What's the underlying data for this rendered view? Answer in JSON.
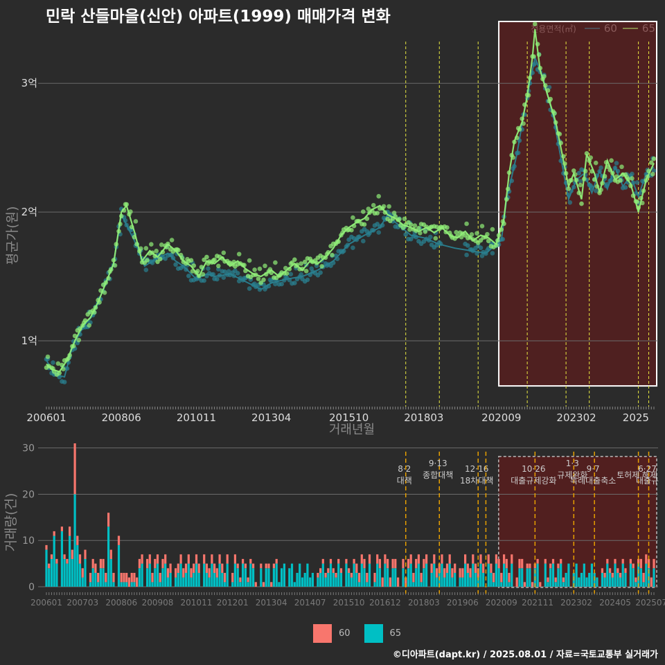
{
  "title": "민락 산들마을(신안) 아파트(1999) 매매가격 변화",
  "legend_top": {
    "label": "전용면적(㎡)",
    "items": [
      {
        "name": "60",
        "color": "#2a8090"
      },
      {
        "name": "65",
        "color": "#90ee78"
      }
    ]
  },
  "legend_bottom": {
    "items": [
      {
        "name": "60",
        "color": "#f8766d"
      },
      {
        "name": "65",
        "color": "#00bfc4"
      }
    ]
  },
  "footer": "©디아파트(dapt.kr) / 2025.08.01 / 자료=국토교통부 실거래가",
  "chart_data": [
    {
      "type": "line",
      "ylabel": "평균가(원)",
      "xlabel": "거래년월",
      "x_start": "200601",
      "x_end": "202508",
      "ylim": [
        0.5,
        3.55
      ],
      "y_ticks": [
        {
          "value": 1,
          "label": "1억"
        },
        {
          "value": 2,
          "label": "2억"
        },
        {
          "value": 3,
          "label": "3억"
        }
      ],
      "x_ticks": [
        "200601",
        "200806",
        "201011",
        "201304",
        "201510",
        "201803",
        "202009",
        "202302",
        "2025"
      ],
      "vlines": [
        "201708",
        "201809",
        "201912",
        "202107",
        "202210",
        "202307",
        "202502",
        "202506"
      ],
      "highlight_box": {
        "from": "202008",
        "to": "202508",
        "ymin": 0.65,
        "ymax": 3.48
      },
      "series": [
        {
          "name": "60",
          "points": [
            [
              "200601",
              0.85
            ],
            [
              "200604",
              0.74
            ],
            [
              "200608",
              0.72
            ],
            [
              "200611",
              0.95
            ],
            [
              "200703",
              1.1
            ],
            [
              "200707",
              1.2
            ],
            [
              "200711",
              1.4
            ],
            [
              "200803",
              1.6
            ],
            [
              "200806",
              1.98
            ],
            [
              "200811",
              1.78
            ],
            [
              "200903",
              1.58
            ],
            [
              "200906",
              1.62
            ],
            [
              "200912",
              1.68
            ],
            [
              "201003",
              1.62
            ],
            [
              "201006",
              1.58
            ],
            [
              "201011",
              1.48
            ],
            [
              "201103",
              1.52
            ],
            [
              "201106",
              1.5
            ],
            [
              "201112",
              1.52
            ],
            [
              "201206",
              1.46
            ],
            [
              "201212",
              1.4
            ],
            [
              "201304",
              1.45
            ],
            [
              "201310",
              1.48
            ],
            [
              "201404",
              1.5
            ],
            [
              "201410",
              1.55
            ],
            [
              "201504",
              1.62
            ],
            [
              "201510",
              1.75
            ],
            [
              "201604",
              1.82
            ],
            [
              "201610",
              1.88
            ],
            [
              "201701",
              1.98
            ],
            [
              "201704",
              1.92
            ],
            [
              "201710",
              1.82
            ],
            [
              "201803",
              1.8
            ],
            [
              "201809",
              1.75
            ],
            [
              "201903",
              1.72
            ],
            [
              "201909",
              1.7
            ],
            [
              "202003",
              1.68
            ],
            [
              "202009",
              1.78
            ],
            [
              "202011",
              2.1
            ],
            [
              "202103",
              2.45
            ],
            [
              "202106",
              2.8
            ],
            [
              "202108",
              3.0
            ],
            [
              "202110",
              3.2
            ],
            [
              "202201",
              3.05
            ],
            [
              "202205",
              2.75
            ],
            [
              "202208",
              2.42
            ],
            [
              "202211",
              2.1
            ],
            [
              "202302",
              2.25
            ],
            [
              "202305",
              2.3
            ],
            [
              "202308",
              2.15
            ],
            [
              "202311",
              2.32
            ],
            [
              "202402",
              2.18
            ],
            [
              "202405",
              2.35
            ],
            [
              "202408",
              2.2
            ],
            [
              "202411",
              2.28
            ],
            [
              "202502",
              2.12
            ],
            [
              "202505",
              2.3
            ],
            [
              "202508",
              2.35
            ]
          ]
        },
        {
          "name": "65",
          "points": [
            [
              "200601",
              0.82
            ],
            [
              "200603",
              0.78
            ],
            [
              "200606",
              0.76
            ],
            [
              "200609",
              0.85
            ],
            [
              "200612",
              1.0
            ],
            [
              "200703",
              1.12
            ],
            [
              "200706",
              1.18
            ],
            [
              "200709",
              1.3
            ],
            [
              "200712",
              1.45
            ],
            [
              "200803",
              1.6
            ],
            [
              "200806",
              2.0
            ],
            [
              "200808",
              2.05
            ],
            [
              "200811",
              1.85
            ],
            [
              "200902",
              1.62
            ],
            [
              "200905",
              1.7
            ],
            [
              "200908",
              1.65
            ],
            [
              "200912",
              1.75
            ],
            [
              "201003",
              1.7
            ],
            [
              "201006",
              1.62
            ],
            [
              "201009",
              1.58
            ],
            [
              "201012",
              1.5
            ],
            [
              "201103",
              1.62
            ],
            [
              "201106",
              1.6
            ],
            [
              "201109",
              1.65
            ],
            [
              "201112",
              1.58
            ],
            [
              "201203",
              1.62
            ],
            [
              "201206",
              1.56
            ],
            [
              "201209",
              1.52
            ],
            [
              "201212",
              1.5
            ],
            [
              "201304",
              1.55
            ],
            [
              "201307",
              1.5
            ],
            [
              "201310",
              1.55
            ],
            [
              "201401",
              1.6
            ],
            [
              "201404",
              1.55
            ],
            [
              "201407",
              1.62
            ],
            [
              "201410",
              1.6
            ],
            [
              "201501",
              1.65
            ],
            [
              "201504",
              1.72
            ],
            [
              "201507",
              1.82
            ],
            [
              "201510",
              1.88
            ],
            [
              "201601",
              1.92
            ],
            [
              "201604",
              1.95
            ],
            [
              "201607",
              2.02
            ],
            [
              "201610",
              2.05
            ],
            [
              "201701",
              1.98
            ],
            [
              "201704",
              1.95
            ],
            [
              "201707",
              1.9
            ],
            [
              "201710",
              1.88
            ],
            [
              "201801",
              1.85
            ],
            [
              "201804",
              1.88
            ],
            [
              "201807",
              1.84
            ],
            [
              "201810",
              1.88
            ],
            [
              "201901",
              1.82
            ],
            [
              "201904",
              1.8
            ],
            [
              "201907",
              1.85
            ],
            [
              "201910",
              1.78
            ],
            [
              "202001",
              1.82
            ],
            [
              "202004",
              1.8
            ],
            [
              "202007",
              1.75
            ],
            [
              "202010",
              1.95
            ],
            [
              "202012",
              2.3
            ],
            [
              "202102",
              2.55
            ],
            [
              "202105",
              2.7
            ],
            [
              "202107",
              2.9
            ],
            [
              "202109",
              3.2
            ],
            [
              "202110",
              3.42
            ],
            [
              "202112",
              3.1
            ],
            [
              "202203",
              2.9
            ],
            [
              "202206",
              2.7
            ],
            [
              "202209",
              2.4
            ],
            [
              "202211",
              2.2
            ],
            [
              "202301",
              2.3
            ],
            [
              "202304",
              2.1
            ],
            [
              "202306",
              2.45
            ],
            [
              "202309",
              2.3
            ],
            [
              "202311",
              2.15
            ],
            [
              "202402",
              2.4
            ],
            [
              "202405",
              2.25
            ],
            [
              "202408",
              2.3
            ],
            [
              "202411",
              2.22
            ],
            [
              "202502",
              2.0
            ],
            [
              "202505",
              2.25
            ],
            [
              "202508",
              2.38
            ]
          ]
        }
      ]
    },
    {
      "type": "bar",
      "stacked": true,
      "ylabel": "거래량(건)",
      "ylim": [
        0,
        31
      ],
      "y_ticks": [
        0,
        10,
        20,
        30
      ],
      "x_ticks": [
        "200601",
        "200703",
        "200806",
        "200908",
        "201011",
        "201201",
        "201304",
        "201407",
        "201510",
        "201612",
        "201803",
        "201906",
        "202009",
        "202111",
        "202302",
        "202405",
        "202507"
      ],
      "peaks": [
        {
          "month": "200612",
          "s60": 11,
          "s65": 20
        },
        {
          "month": "200801",
          "s60": 3,
          "s65": 13
        }
      ],
      "events": [
        {
          "month": "201708",
          "date": "8·2",
          "name": "대책"
        },
        {
          "month": "201809",
          "date": "9·13",
          "name": "종합대책"
        },
        {
          "month": "201912",
          "date": "12·16",
          "name": "18차대책"
        },
        {
          "month": "202003",
          "date": "",
          "name": ""
        },
        {
          "month": "202110",
          "date": "10·26",
          "name": "대출규제강화"
        },
        {
          "month": "202301",
          "date": "1·3",
          "name": "규제완화"
        },
        {
          "month": "202309",
          "date": "9·7",
          "name": "특례대출축소"
        },
        {
          "month": "202502",
          "date": "",
          "name": "토허제 해제"
        },
        {
          "month": "202506",
          "date": "6·27",
          "name": "대출규"
        }
      ],
      "highlight_box": {
        "from": "202009",
        "to": "202508"
      }
    }
  ]
}
